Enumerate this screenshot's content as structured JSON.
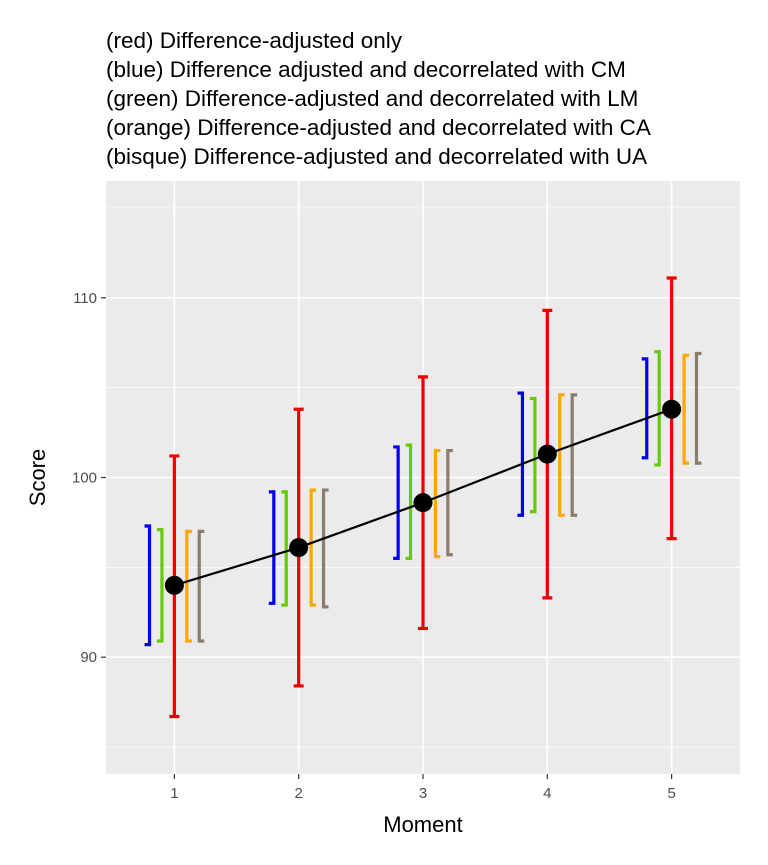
{
  "title_lines": [
    "(red) Difference-adjusted only",
    "(blue) Difference adjusted and decorrelated with CM",
    "(green) Difference-adjusted and decorrelated with LM",
    "(orange) Difference-adjusted and decorrelated with CA",
    "(bisque) Difference-adjusted and decorrelated with UA"
  ],
  "chart_data": {
    "type": "errorbar-line",
    "xlabel": "Moment",
    "ylabel": "Score",
    "x": [
      1,
      2,
      3,
      4,
      5
    ],
    "x_tick_labels": [
      "1",
      "2",
      "3",
      "4",
      "5"
    ],
    "y_ticks": [
      90,
      100,
      110
    ],
    "y_tick_labels": [
      "90",
      "100",
      "110"
    ],
    "xlim": [
      0.45,
      5.55
    ],
    "ylim": [
      83.5,
      116.5
    ],
    "means": [
      94.0,
      96.1,
      98.6,
      101.3,
      103.8
    ],
    "colors": {
      "red": "#ee0000",
      "blue": "#0000ee",
      "green": "#66cc00",
      "orange": "#ffa500",
      "bisque": "#8b7d6b",
      "mean_line": "#000000",
      "panel_bg": "#ebebeb",
      "grid": "#ffffff"
    },
    "series": [
      {
        "name": "red",
        "label": "Difference-adjusted only",
        "offset": 0,
        "lower": [
          86.7,
          88.4,
          91.6,
          93.3,
          96.6
        ],
        "upper": [
          101.2,
          103.8,
          105.6,
          109.3,
          111.1
        ]
      },
      {
        "name": "blue",
        "label": "Difference adjusted and decorrelated with CM",
        "offset": -0.2,
        "lower": [
          90.7,
          93.0,
          95.5,
          97.9,
          101.1
        ],
        "upper": [
          97.3,
          99.2,
          101.7,
          104.7,
          106.6
        ]
      },
      {
        "name": "green",
        "label": "Difference-adjusted and decorrelated with LM",
        "offset": -0.1,
        "lower": [
          90.9,
          92.9,
          95.5,
          98.1,
          100.7
        ],
        "upper": [
          97.1,
          99.2,
          101.8,
          104.4,
          107.0
        ]
      },
      {
        "name": "orange",
        "label": "Difference-adjusted and decorrelated with CA",
        "offset": 0.1,
        "lower": [
          90.9,
          92.9,
          95.6,
          97.9,
          100.8
        ],
        "upper": [
          97.0,
          99.3,
          101.5,
          104.6,
          106.8
        ]
      },
      {
        "name": "bisque",
        "label": "Difference-adjusted and decorrelated with UA",
        "offset": 0.2,
        "lower": [
          90.9,
          92.8,
          95.7,
          97.9,
          100.8
        ],
        "upper": [
          97.0,
          99.3,
          101.5,
          104.6,
          106.9
        ]
      }
    ]
  }
}
